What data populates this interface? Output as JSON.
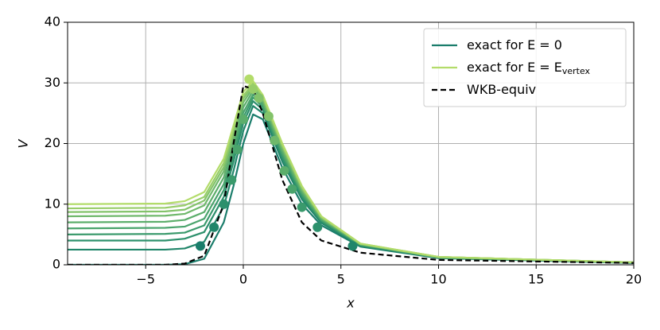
{
  "chart_data": {
    "type": "line",
    "xlabel": "x",
    "ylabel": "V",
    "x": [
      -9,
      -4,
      -3,
      -2,
      -1,
      -0.5,
      0,
      0.5,
      1,
      2,
      3,
      4,
      6,
      10,
      20
    ],
    "series": [
      {
        "name": "exact for E = 0",
        "color": "#1a7d6b",
        "values": [
          0,
          0,
          0.1,
          1,
          7,
          13,
          20,
          24.8,
          24,
          16,
          10,
          6.5,
          3,
          1.1,
          0.3
        ]
      },
      {
        "color": "#21866a",
        "values": [
          2.5,
          2.5,
          2.7,
          3.8,
          9.6,
          15.5,
          22.1,
          26.2,
          25,
          17,
          10.8,
          6.9,
          3.1,
          1.2,
          0.3
        ]
      },
      {
        "color": "#2c906c",
        "values": [
          4,
          4,
          4.3,
          5.4,
          11.2,
          17,
          23.4,
          27,
          25.6,
          17.6,
          11.2,
          7.1,
          3.2,
          1.2,
          0.3
        ]
      },
      {
        "color": "#3a9a6c",
        "values": [
          5,
          5.1,
          5.3,
          6.5,
          12.3,
          18,
          24.3,
          27.6,
          26,
          18,
          11.5,
          7.3,
          3.3,
          1.2,
          0.4
        ]
      },
      {
        "color": "#4aa46c",
        "values": [
          6,
          6.1,
          6.3,
          7.6,
          13.3,
          19,
          25.1,
          28.1,
          26.4,
          18.4,
          11.8,
          7.4,
          3.3,
          1.2,
          0.4
        ]
      },
      {
        "color": "#5cae6b",
        "values": [
          7,
          7.1,
          7.4,
          8.7,
          14.4,
          20,
          26,
          28.7,
          26.8,
          18.8,
          12.1,
          7.6,
          3.4,
          1.2,
          0.4
        ]
      },
      {
        "color": "#6fb86b",
        "values": [
          8,
          8.1,
          8.4,
          9.8,
          15.4,
          21,
          26.8,
          29.2,
          27.2,
          19.2,
          12.4,
          7.7,
          3.4,
          1.3,
          0.4
        ]
      },
      {
        "color": "#83c36a",
        "values": [
          8.7,
          8.8,
          9.1,
          10.6,
          16.1,
          21.7,
          27.4,
          29.6,
          27.5,
          19.5,
          12.6,
          7.8,
          3.4,
          1.3,
          0.4
        ]
      },
      {
        "color": "#97cd69",
        "values": [
          9.3,
          9.4,
          9.8,
          11.2,
          16.8,
          22.3,
          27.9,
          29.9,
          27.7,
          19.7,
          12.8,
          7.9,
          3.5,
          1.3,
          0.4
        ]
      },
      {
        "name": "exact for E = E",
        "name_subscript": "vertex",
        "color": "#b3dc6a",
        "values": [
          10,
          10.1,
          10.5,
          12,
          17.5,
          23,
          28.5,
          30.3,
          28,
          20,
          13,
          8,
          3.5,
          1.3,
          0.4
        ]
      },
      {
        "name": "WKB-equiv",
        "color": "#000000",
        "dashed": true,
        "values": [
          0,
          0,
          0.2,
          1.5,
          10,
          20,
          29.5,
          29,
          25,
          14,
          7,
          4,
          2,
          0.8,
          0.3
        ]
      }
    ],
    "markers": {
      "x": [
        -2.2,
        -1.5,
        -1,
        -0.6,
        -0.3,
        0,
        0.3,
        0.5,
        0.8,
        1.3,
        1.6,
        2.1,
        2.5,
        3,
        3.8,
        5.6
      ],
      "y": [
        3.1,
        6.2,
        10,
        14,
        19,
        24,
        30.6,
        29,
        27.5,
        24.5,
        20.5,
        15.5,
        12.5,
        9.5,
        6.2,
        3.1
      ],
      "colors": [
        "#1a7d6b",
        "#21866a",
        "#2c906c",
        "#3a9a6c",
        "#4aa46c",
        "#5cae6b",
        "#b3dc6a",
        "#97cd69",
        "#83c36a",
        "#83c36a",
        "#6fb86b",
        "#5cae6b",
        "#4aa46c",
        "#3a9a6c",
        "#2c906c",
        "#21866a"
      ]
    },
    "xlim": [
      -9,
      20
    ],
    "xticks": [
      {
        "value": -5,
        "label": "−5"
      },
      0,
      5,
      10,
      15,
      20
    ],
    "ylim": [
      0,
      40
    ],
    "yticks": [
      0,
      10,
      20,
      30,
      40
    ],
    "grid": true,
    "legend": "upper right"
  }
}
